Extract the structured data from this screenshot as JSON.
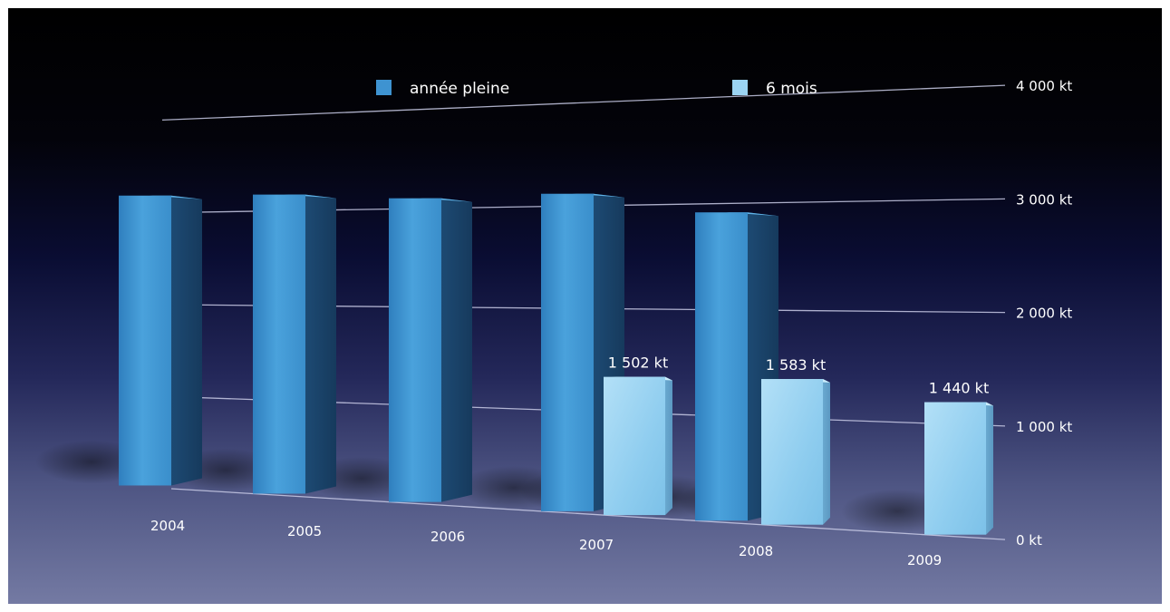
{
  "chart_data": {
    "type": "bar",
    "categories": [
      "2004",
      "2005",
      "2006",
      "2007",
      "2008",
      "2009"
    ],
    "series": [
      {
        "name": "année pleine",
        "values": [
          3150,
          3250,
          3300,
          3450,
          3350,
          null
        ],
        "color": "#3e93d1"
      },
      {
        "name": "6 mois",
        "values": [
          null,
          null,
          null,
          1502,
          1583,
          1440
        ],
        "value_labels": [
          "",
          "",
          "",
          "1 502 kt",
          "1 583 kt",
          "1 440 kt"
        ],
        "color": "#9bd4f2"
      }
    ],
    "y_ticks": [
      {
        "value": 0,
        "label": "0 kt"
      },
      {
        "value": 1000,
        "label": "1 000 kt"
      },
      {
        "value": 2000,
        "label": "2 000 kt"
      },
      {
        "value": 3000,
        "label": "3 000 kt"
      },
      {
        "value": 4000,
        "label": "4 000 kt"
      }
    ],
    "ylim": [
      0,
      4000
    ],
    "title": "",
    "xlabel": "",
    "ylabel": "",
    "legend_position": "top-center",
    "grid": true,
    "colors": {
      "full_year": "#3e93d1",
      "half_year": "#9bd4f2"
    }
  }
}
